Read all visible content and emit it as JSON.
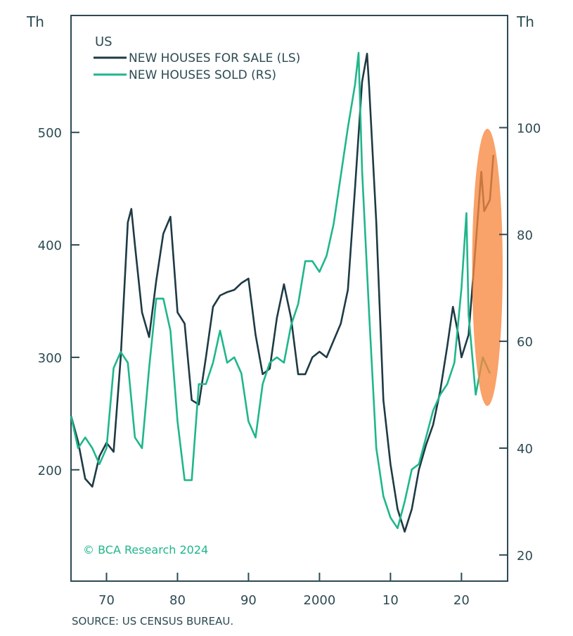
{
  "chart_data": {
    "type": "line",
    "title": "US",
    "left_unit": "Th",
    "right_unit": "Th",
    "xlim": [
      1965,
      2026.5
    ],
    "ylim_left": [
      101,
      604
    ],
    "ylim_right": [
      15.1,
      121
    ],
    "x_ticks": [
      {
        "v": 1970,
        "label": "70"
      },
      {
        "v": 1980,
        "label": "80"
      },
      {
        "v": 1990,
        "label": "90"
      },
      {
        "v": 2000,
        "label": "2000"
      },
      {
        "v": 2010,
        "label": "10"
      },
      {
        "v": 2020,
        "label": "20"
      }
    ],
    "left_ticks": [
      200,
      300,
      400,
      500
    ],
    "right_ticks": [
      20,
      40,
      60,
      80,
      100
    ],
    "legend_placement": "top-left",
    "copyright": "© BCA Research 2024",
    "source": "SOURCE: US CENSUS BUREAU.",
    "colors": {
      "for_sale": "#1e3a45",
      "sold": "#1fb68b",
      "axis": "#2c4a53",
      "highlight": "#f7883f"
    },
    "highlight": {
      "x_range": [
        2021.5,
        2025.8
      ],
      "note": "highlighted recent period"
    },
    "series": [
      {
        "name": "NEW HOUSES FOR SALE (LS)",
        "axis": "left",
        "x": [
          1965,
          1966,
          1967,
          1968,
          1969,
          1970,
          1971,
          1972,
          1973,
          1973.5,
          1974,
          1975,
          1976,
          1977,
          1978,
          1979,
          1980,
          1981,
          1982,
          1983,
          1984,
          1985,
          1986,
          1987,
          1988,
          1989,
          1990,
          1991,
          1992,
          1993,
          1994,
          1995,
          1996,
          1997,
          1998,
          1999,
          2000,
          2001,
          2002,
          2003,
          2004,
          2005,
          2006,
          2006.7,
          2007,
          2008,
          2009,
          2010,
          2011,
          2012,
          2013,
          2014,
          2015,
          2016,
          2017,
          2018,
          2018.8,
          2019.5,
          2020,
          2021,
          2022,
          2022.8,
          2023.2,
          2024,
          2024.5
        ],
        "values": [
          248,
          225,
          192,
          185,
          212,
          224,
          216,
          300,
          420,
          432,
          400,
          340,
          318,
          368,
          410,
          425,
          340,
          330,
          262,
          258,
          300,
          345,
          355,
          358,
          360,
          366,
          370,
          320,
          285,
          290,
          335,
          365,
          335,
          285,
          285,
          300,
          305,
          300,
          315,
          330,
          360,
          450,
          545,
          570,
          540,
          420,
          262,
          205,
          165,
          145,
          165,
          200,
          222,
          240,
          270,
          310,
          345,
          322,
          300,
          320,
          400,
          465,
          430,
          440,
          480
        ]
      },
      {
        "name": "NEW HOUSES SOLD (RS)",
        "axis": "right",
        "x": [
          1965,
          1966,
          1967,
          1968,
          1969,
          1970,
          1971,
          1972,
          1973,
          1974,
          1975,
          1976,
          1977,
          1978,
          1979,
          1980,
          1981,
          1982,
          1983,
          1984,
          1985,
          1986,
          1987,
          1988,
          1989,
          1990,
          1991,
          1992,
          1993,
          1994,
          1995,
          1996,
          1997,
          1998,
          1999,
          2000,
          2001,
          2002,
          2003,
          2004,
          2005,
          2005.5,
          2006,
          2007,
          2008,
          2009,
          2010,
          2011,
          2012,
          2013,
          2014,
          2015,
          2016,
          2017,
          2018,
          2019,
          2020,
          2020.7,
          2021,
          2022,
          2023,
          2024
        ],
        "values": [
          46,
          40,
          42,
          40,
          37,
          40,
          55,
          58,
          56,
          42,
          40,
          55,
          68,
          68,
          62,
          45,
          34,
          34,
          52,
          52,
          56,
          62,
          56,
          57,
          54,
          45,
          42,
          52,
          56,
          57,
          56,
          63,
          67,
          75,
          75,
          73,
          76,
          82,
          91,
          100,
          108,
          114,
          92,
          65,
          40,
          31,
          27,
          25,
          30,
          36,
          37,
          42,
          47,
          50,
          52,
          56,
          70,
          84,
          65,
          50,
          57,
          54
        ]
      }
    ]
  }
}
